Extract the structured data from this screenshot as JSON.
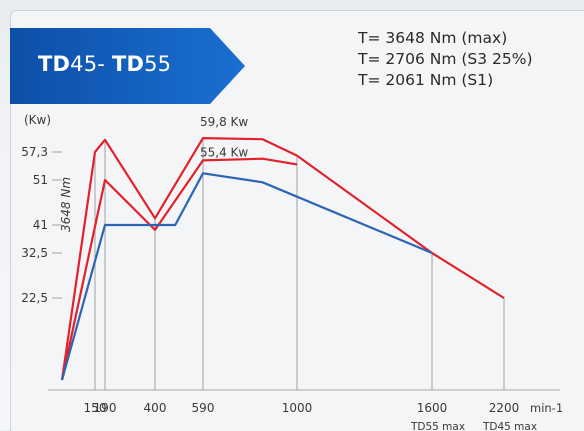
{
  "banner": {
    "part1_bold": "TD",
    "part1_rest": "45- ",
    "part2_bold": "TD",
    "part2_rest": "55"
  },
  "torque_lines": [
    "T= 3648 Nm (max)",
    "T= 2706 Nm (S3 25%)",
    "T= 2061 Nm (S1)"
  ],
  "colors": {
    "banner": "#1565c0",
    "max_curve": "#e3212b",
    "s3_curve": "#e3212b",
    "s1_curve": "#2d64b4",
    "grid": "#8c8c8c"
  },
  "chart_data": {
    "type": "line",
    "title": "",
    "xlabel": "min-1",
    "ylabel": "(Kw)",
    "x_ticks": [
      150,
      190,
      400,
      590,
      1000,
      1600,
      2200
    ],
    "x_tick_labels": [
      "150",
      "190",
      "400",
      "590",
      "1000",
      "1600",
      "2200"
    ],
    "x_unit_label": "min-1",
    "x_under_labels": [
      {
        "x": 1600,
        "text": "TD55 max"
      },
      {
        "x": 2200,
        "text": "TD45 max"
      }
    ],
    "y_ticks": [
      22.5,
      32.5,
      41,
      51,
      57.3
    ],
    "y_tick_labels": [
      "22,5",
      "32,5",
      "41",
      "51",
      "57,3"
    ],
    "vertical_annotation": {
      "x": 0,
      "text": "3648 Nm"
    },
    "annotations": [
      {
        "x": 590,
        "y": 59.8,
        "text": "59,8 Kw"
      },
      {
        "x": 590,
        "y": 55.4,
        "text": "55,4 Kw"
      }
    ],
    "series": [
      {
        "key": "max",
        "x": [
          0,
          150,
          190,
          400,
          590,
          850,
          1000,
          1600,
          2200
        ],
        "y": [
          0,
          57.3,
          59.5,
          42.5,
          59.8,
          59.6,
          56.5,
          32.5,
          22.5
        ]
      },
      {
        "key": "s3",
        "x": [
          0,
          190,
          400,
          590,
          850,
          1000
        ],
        "y": [
          0,
          51,
          39.5,
          55.4,
          55.8,
          54.5
        ]
      },
      {
        "key": "s1",
        "x": [
          0,
          190,
          400,
          480,
          590,
          850,
          1600
        ],
        "y": [
          0,
          41,
          41,
          41,
          52.5,
          50.5,
          32.5
        ]
      }
    ]
  }
}
